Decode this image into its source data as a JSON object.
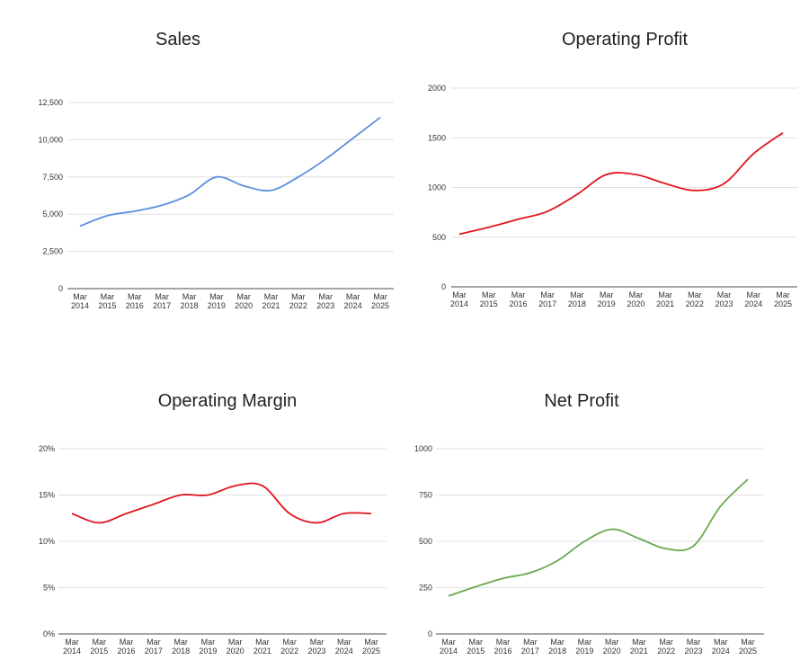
{
  "chart_data": [
    {
      "type": "line",
      "title": "Sales",
      "categories": [
        "Mar 2014",
        "Mar 2015",
        "Mar 2016",
        "Mar 2017",
        "Mar 2018",
        "Mar 2019",
        "Mar 2020",
        "Mar 2021",
        "Mar 2022",
        "Mar 2023",
        "Mar 2024",
        "Mar 2025"
      ],
      "values": [
        4200,
        4900,
        5200,
        5600,
        6300,
        7500,
        6900,
        6600,
        7500,
        8700,
        10100,
        11500
      ],
      "ylim": [
        0,
        12500
      ],
      "yticks": [
        "0",
        "2,500",
        "5,000",
        "7,500",
        "10,000",
        "12,500"
      ],
      "color": "#5b8fe0",
      "grid": true
    },
    {
      "type": "line",
      "title": "Operating Profit",
      "categories": [
        "Mar 2014",
        "Mar 2015",
        "Mar 2016",
        "Mar 2017",
        "Mar 2018",
        "Mar 2019",
        "Mar 2020",
        "Mar 2021",
        "Mar 2022",
        "Mar 2023",
        "Mar 2024",
        "Mar 2025"
      ],
      "values": [
        530,
        600,
        680,
        760,
        930,
        1130,
        1130,
        1040,
        970,
        1040,
        1340,
        1550
      ],
      "ylim": [
        0,
        2000
      ],
      "yticks": [
        "0",
        "500",
        "1000",
        "1500",
        "2000"
      ],
      "color": "#e0141e",
      "grid": true
    },
    {
      "type": "line",
      "title": "Operating Margin",
      "categories": [
        "Mar 2014",
        "Mar 2015",
        "Mar 2016",
        "Mar 2017",
        "Mar 2018",
        "Mar 2019",
        "Mar 2020",
        "Mar 2021",
        "Mar 2022",
        "Mar 2023",
        "Mar 2024",
        "Mar 2025"
      ],
      "values": [
        13,
        12,
        13,
        14,
        15,
        15,
        16,
        16,
        13,
        12,
        13,
        13
      ],
      "ylim": [
        0,
        20
      ],
      "yticks": [
        "0%",
        "5%",
        "10%",
        "15%",
        "20%"
      ],
      "color": "#e0141e",
      "grid": true
    },
    {
      "type": "line",
      "title": "Net Profit",
      "categories": [
        "Mar 2014",
        "Mar 2015",
        "Mar 2016",
        "Mar 2017",
        "Mar 2018",
        "Mar 2019",
        "Mar 2020",
        "Mar 2021",
        "Mar 2022",
        "Mar 2023",
        "Mar 2024",
        "Mar 2025"
      ],
      "values": [
        205,
        255,
        300,
        330,
        395,
        500,
        565,
        515,
        460,
        475,
        690,
        835
      ],
      "ylim": [
        0,
        1000
      ],
      "yticks": [
        "0",
        "250",
        "500",
        "750",
        "1000"
      ],
      "color": "#6aa84f",
      "grid": true
    }
  ]
}
